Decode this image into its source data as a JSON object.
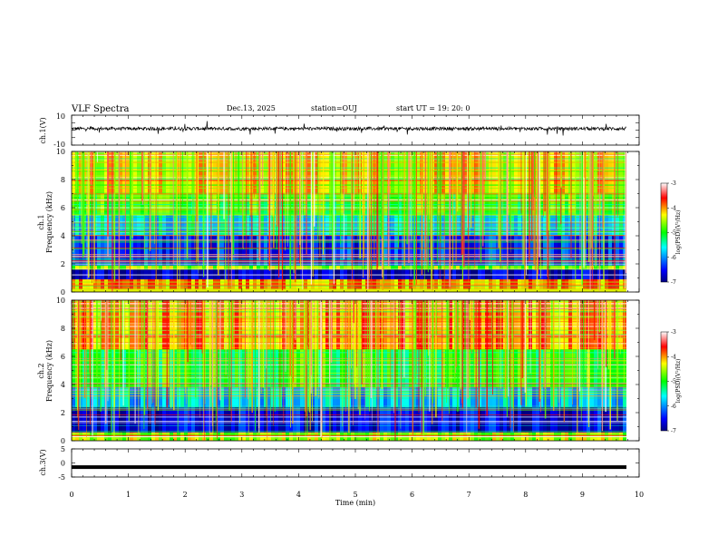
{
  "header": {
    "title": "VLF Spectra",
    "date": "Dec.13, 2025",
    "station": "station=OUJ",
    "start_ut": "start  UT =   19: 20: 0"
  },
  "chart_data": [
    {
      "type": "line",
      "name": "ch1-waveform",
      "ylabel": "ch.1(V)",
      "ylim": [
        -10,
        10
      ],
      "y_tick_labels": [
        "10",
        "-10"
      ],
      "xlim": [
        0,
        10
      ],
      "series_description": "noisy waveform around ~+1 V with occasional spikes"
    },
    {
      "type": "heatmap",
      "name": "ch1-spectrogram",
      "ylabel_line1": "ch.1",
      "ylabel_line2": "Frequency  (kHz)",
      "ylim": [
        0,
        10
      ],
      "y_ticks": [
        "0",
        "2",
        "4",
        "6",
        "8",
        "10"
      ],
      "xlim": [
        0,
        10
      ],
      "colorbar": {
        "label": "log(PSD)(V²/Hz)",
        "range": [
          -7,
          -3
        ],
        "ticks": [
          "-3",
          "-4",
          "-5",
          "-6",
          "-7"
        ]
      },
      "bands": [
        {
          "f": [
            0.2,
            0.9
          ],
          "level": -4.0
        },
        {
          "f": [
            0.9,
            1.6
          ],
          "level": -6.8
        },
        {
          "f": [
            1.6,
            1.9
          ],
          "level": -4.6
        },
        {
          "f": [
            1.9,
            4.0
          ],
          "level": -6.4
        },
        {
          "f": [
            4.0,
            5.5
          ],
          "level": -5.6
        },
        {
          "f": [
            5.5,
            7.0
          ],
          "level": -4.9
        },
        {
          "f": [
            7.0,
            10.0
          ],
          "level": -4.3
        }
      ]
    },
    {
      "type": "heatmap",
      "name": "ch2-spectrogram",
      "ylabel_line1": "ch.2",
      "ylabel_line2": "Frequency  (kHz)",
      "ylim": [
        0,
        10
      ],
      "y_ticks": [
        "0",
        "2",
        "4",
        "6",
        "8",
        "10"
      ],
      "xlim": [
        0,
        10
      ],
      "colorbar": {
        "label": "log(PSD)(V²/Hz)",
        "range": [
          -7,
          -3
        ],
        "ticks": [
          "-3",
          "-4",
          "-5",
          "-6",
          "-7"
        ]
      },
      "bands": [
        {
          "f": [
            0.0,
            0.6
          ],
          "level": -4.5
        },
        {
          "f": [
            0.6,
            2.4
          ],
          "level": -6.6
        },
        {
          "f": [
            2.4,
            3.8
          ],
          "level": -5.8
        },
        {
          "f": [
            3.8,
            6.5
          ],
          "level": -5.0
        },
        {
          "f": [
            6.5,
            10.0
          ],
          "level": -4.0
        }
      ]
    },
    {
      "type": "line",
      "name": "ch3-waveform",
      "ylabel": "ch.3(V)",
      "ylim": [
        -5,
        5
      ],
      "y_ticks": [
        "5",
        "0",
        "-5"
      ],
      "xlim": [
        0,
        10
      ],
      "constant_value": -1.5
    }
  ],
  "x_axis": {
    "label": "Time  (min)",
    "ticks": [
      "0",
      "1",
      "2",
      "3",
      "4",
      "5",
      "6",
      "7",
      "8",
      "9",
      "10"
    ]
  }
}
